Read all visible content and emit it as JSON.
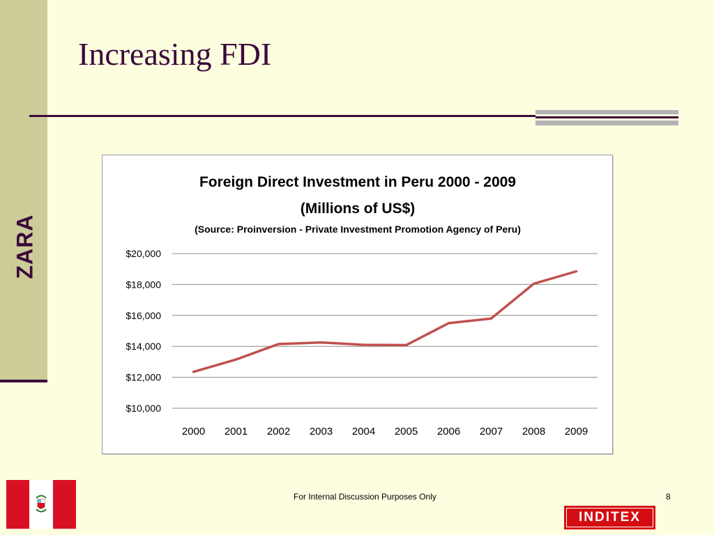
{
  "sidebar": {
    "brand": "ZARA"
  },
  "slide": {
    "title": "Increasing FDI"
  },
  "footer": {
    "text": "For Internal Discussion Purposes Only",
    "page_number": "8",
    "company_logo": "INDITEX"
  },
  "colors": {
    "background": "#fdfde0",
    "accent_purple": "#3b0a3b",
    "side_band": "#cccc99",
    "series_line": "#c0504d",
    "flag_red": "#d91023",
    "logo_red": "#d40d12"
  },
  "icons": {
    "flag": "peru-flag-icon"
  },
  "chart_data": {
    "type": "line",
    "title": "Foreign Direct Investment in Peru 2000 - 2009",
    "subtitle": "(Millions of US$)",
    "source_note": "(Source: Proinversion - Private Investment Promotion Agency of Peru)",
    "xlabel": "",
    "ylabel": "",
    "categories": [
      "2000",
      "2001",
      "2002",
      "2003",
      "2004",
      "2005",
      "2006",
      "2007",
      "2008",
      "2009"
    ],
    "series": [
      {
        "values": [
          12350,
          13150,
          14150,
          14250,
          14100,
          14080,
          15500,
          15800,
          18050,
          18850
        ]
      }
    ],
    "ylim": [
      10000,
      20000
    ],
    "yticks": [
      10000,
      12000,
      14000,
      16000,
      18000,
      20000
    ],
    "ytick_labels": [
      "$10,000",
      "$12,000",
      "$14,000",
      "$16,000",
      "$18,000",
      "$20,000"
    ],
    "grid": true,
    "legend": "none"
  }
}
